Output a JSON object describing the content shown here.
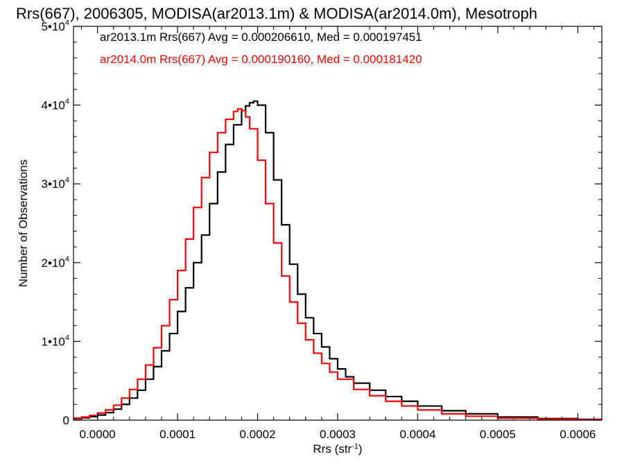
{
  "chart_data": {
    "type": "line",
    "title": "Rrs(667), 2006305, MODISA(ar2013.1m) & MODISA(ar2014.0m), Mesotroph",
    "xlabel": "Rrs (str⁻¹)",
    "ylabel": "Number of Observations",
    "xlim": [
      -3e-05,
      0.00063
    ],
    "ylim": [
      0,
      50000
    ],
    "xticks": [
      0.0,
      0.0001,
      0.0002,
      0.0003,
      0.0004,
      0.0005,
      0.0006
    ],
    "xtick_labels": [
      "0.0000",
      "0.0001",
      "0.0002",
      "0.0003",
      "0.0004",
      "0.0005",
      "0.0006"
    ],
    "yticks": [
      0,
      10000,
      20000,
      30000,
      40000,
      50000
    ],
    "ytick_labels": [
      {
        "mantissa": "0",
        "exponent": ""
      },
      {
        "mantissa": "1•10",
        "exponent": "4"
      },
      {
        "mantissa": "2•10",
        "exponent": "4"
      },
      {
        "mantissa": "3•10",
        "exponent": "4"
      },
      {
        "mantissa": "4•10",
        "exponent": "4"
      },
      {
        "mantissa": "5•10",
        "exponent": "4"
      }
    ],
    "grid": false,
    "legend_position": "top-left",
    "style": "step-histogram",
    "series": [
      {
        "label": "ar2013.1m Rrs(667) Avg = 0.000206610, Med = 0.000197451",
        "color": "#000000",
        "x": [
          -3e-05,
          -2e-05,
          -1e-05,
          0.0,
          1e-05,
          2e-05,
          3e-05,
          4e-05,
          5e-05,
          6e-05,
          7e-05,
          8e-05,
          9e-05,
          0.0001,
          0.00011,
          0.00012,
          0.00013,
          0.00014,
          0.00015,
          0.00016,
          0.00017,
          0.00018,
          0.000185,
          0.00019,
          0.000195,
          0.0002,
          0.00021,
          0.00022,
          0.00023,
          0.00024,
          0.00025,
          0.00026,
          0.00027,
          0.00028,
          0.00029,
          0.0003,
          0.00031,
          0.00032,
          0.00034,
          0.00036,
          0.00038,
          0.0004,
          0.00043,
          0.00046,
          0.0005,
          0.00055,
          0.0006,
          0.00063
        ],
        "y": [
          200,
          300,
          450,
          650,
          950,
          1400,
          2000,
          2800,
          3800,
          5200,
          6800,
          8800,
          11000,
          13800,
          16800,
          20000,
          23500,
          27500,
          31500,
          35000,
          37500,
          39300,
          39900,
          40300,
          40500,
          40000,
          36500,
          30500,
          24800,
          19800,
          16000,
          13000,
          11000,
          9300,
          7800,
          6500,
          5500,
          4700,
          3800,
          3000,
          2400,
          1800,
          1200,
          800,
          400,
          200,
          100,
          50
        ]
      },
      {
        "label": "ar2014.0m Rrs(667) Avg = 0.000190160, Med = 0.000181420",
        "color": "#ff0000",
        "x": [
          -3e-05,
          -2e-05,
          -1e-05,
          0.0,
          1e-05,
          2e-05,
          3e-05,
          4e-05,
          5e-05,
          6e-05,
          7e-05,
          8e-05,
          9e-05,
          0.0001,
          0.00011,
          0.00012,
          0.00013,
          0.00014,
          0.00015,
          0.00016,
          0.00017,
          0.000175,
          0.00018,
          0.000185,
          0.00019,
          0.0002,
          0.00021,
          0.00022,
          0.00023,
          0.00024,
          0.00025,
          0.00026,
          0.00027,
          0.00028,
          0.00029,
          0.0003,
          0.00032,
          0.00034,
          0.00036,
          0.00038,
          0.0004,
          0.00043,
          0.00046,
          0.0005,
          0.00055,
          0.0006,
          0.00063
        ],
        "y": [
          250,
          400,
          600,
          900,
          1300,
          1900,
          2800,
          3900,
          5200,
          7000,
          9200,
          12000,
          15300,
          19000,
          23000,
          27000,
          30800,
          34000,
          36500,
          38200,
          39200,
          39500,
          39300,
          38500,
          37000,
          33000,
          27500,
          22500,
          18300,
          15000,
          12300,
          10200,
          8500,
          7200,
          6100,
          5200,
          3900,
          3100,
          2400,
          1800,
          1300,
          800,
          500,
          250,
          120,
          60,
          30
        ]
      }
    ]
  }
}
